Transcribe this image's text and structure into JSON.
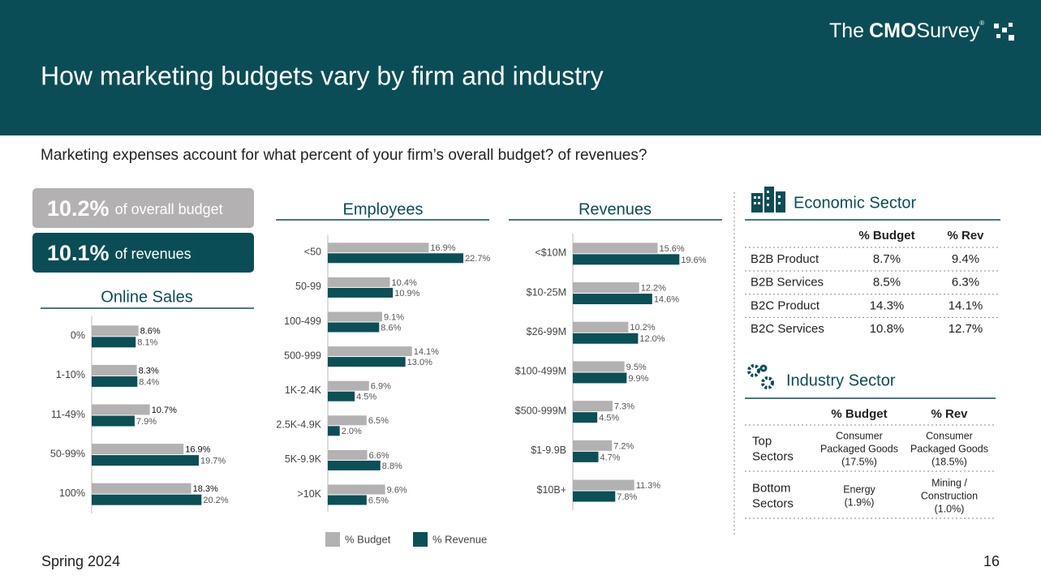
{
  "header": {
    "title": "How marketing budgets vary by firm and industry",
    "logo": {
      "pre": "The",
      "bold": "CMO",
      "post": "Survey",
      "mark": "®"
    }
  },
  "subtitle": "Marketing expenses account for what percent of your firm’s overall budget? of revenues?",
  "callouts": [
    {
      "value": "10.2%",
      "text": "of overall budget"
    },
    {
      "value": "10.1%",
      "text": "of revenues"
    }
  ],
  "chart_data": [
    {
      "type": "bar",
      "orientation": "horizontal",
      "title": "Online Sales",
      "categories": [
        "0%",
        "1-10%",
        "11-49%",
        "50-99%",
        "100%"
      ],
      "series": [
        {
          "color": "#b3b1b1",
          "values": [
            8.6,
            8.3,
            10.7,
            16.9,
            18.3
          ],
          "value_labels": [
            "8.6%",
            "8.3%",
            "10.7%",
            "16.9%",
            "18.3%"
          ]
        },
        {
          "color": "#0b4f57",
          "values": [
            8.1,
            8.4,
            7.9,
            19.7,
            20.2
          ],
          "value_labels": [
            "8.1%",
            "8.4%",
            "7.9%",
            "19.7%",
            "20.2%"
          ]
        }
      ]
    },
    {
      "type": "bar",
      "orientation": "horizontal",
      "title": "Employees",
      "categories": [
        "<50",
        "50-99",
        "100-499",
        "500-999",
        "1K-2.4K",
        "2.5K-4.9K",
        "5K-9.9K",
        ">10K"
      ],
      "series": [
        {
          "name": "% Budget",
          "color": "#b3b1b1",
          "values": [
            16.9,
            10.4,
            9.1,
            14.1,
            6.9,
            6.5,
            6.6,
            9.6
          ],
          "value_labels": [
            "16.9%",
            "10.4%",
            "9.1%",
            "14.1%",
            "6.9%",
            "6.5%",
            "6.6%",
            "9.6%"
          ]
        },
        {
          "name": "% Revenue",
          "color": "#0b4f57",
          "values": [
            22.7,
            10.9,
            8.6,
            13.0,
            4.5,
            2.0,
            8.8,
            6.5
          ],
          "value_labels": [
            "22.7%",
            "10.9%",
            "8.6%",
            "13.0%",
            "4.5%",
            "2.0%",
            "8.8%",
            "6.5%"
          ]
        }
      ]
    },
    {
      "type": "bar",
      "orientation": "horizontal",
      "title": "Revenues",
      "categories": [
        "<$10M",
        "$10-25M",
        "$26-99M",
        "$100-499M",
        "$500-999M",
        "$1-9.9B",
        "$10B+"
      ],
      "series": [
        {
          "color": "#b3b1b1",
          "values": [
            15.6,
            12.2,
            10.2,
            9.5,
            7.3,
            7.2,
            11.3
          ],
          "value_labels": [
            "15.6%",
            "12.2%",
            "10.2%",
            "9.5%",
            "7.3%",
            "7.2%",
            "11.3%"
          ]
        },
        {
          "color": "#0b4f57",
          "values": [
            19.6,
            14.6,
            12.0,
            9.9,
            4.5,
            4.7,
            7.8
          ],
          "value_labels": [
            "19.6%",
            "14.6%",
            "12.0%",
            "9.9%",
            "4.5%",
            "4.7%",
            "7.8%"
          ]
        }
      ]
    }
  ],
  "economic_sector": {
    "title": "Economic Sector",
    "columns": [
      "% Budget",
      "% Rev"
    ],
    "rows": [
      [
        "B2B Product",
        "8.7%",
        "9.4%"
      ],
      [
        "B2B Services",
        "8.5%",
        "6.3%"
      ],
      [
        "B2C Product",
        "14.3%",
        "14.1%"
      ],
      [
        "B2C Services",
        "10.8%",
        "12.7%"
      ]
    ]
  },
  "industry_sector": {
    "title": "Industry Sector",
    "columns": [
      "% Budget",
      "% Rev"
    ],
    "rows": [
      [
        [
          "Top",
          "Sectors"
        ],
        [
          "Consumer",
          "Packaged Goods",
          "(17.5%)"
        ],
        [
          "Consumer",
          "Packaged Goods",
          "(18.5%)"
        ]
      ],
      [
        [
          "Bottom",
          "Sectors"
        ],
        [
          "Energy",
          "(1.9%)"
        ],
        [
          "Mining /",
          "Construction",
          "(1.0%)"
        ]
      ]
    ]
  },
  "footer": {
    "left": "Spring 2024",
    "page": "16"
  }
}
